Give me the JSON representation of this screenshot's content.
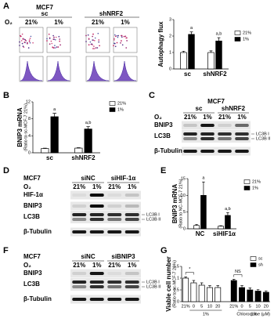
{
  "panel_a": {
    "label": "A",
    "flow": {
      "cell": "MCF7",
      "groups": [
        "sc",
        "shNRF2"
      ],
      "o2": "O₂",
      "lanes": [
        "21%",
        "1%",
        "21%",
        "1%"
      ]
    },
    "chart_data": {
      "type": "bar",
      "ylabel": "Autophagy flux",
      "categories": [
        "sc",
        "shNRF2"
      ],
      "series": [
        {
          "name": "21%",
          "color": "#ffffff",
          "values": [
            1,
            1
          ],
          "errors": [
            0.08,
            0.1
          ]
        },
        {
          "name": "1%",
          "color": "#000000",
          "values": [
            2.1,
            1.7
          ],
          "errors": [
            0.15,
            0.2
          ],
          "annotations": [
            "a",
            "a,b"
          ]
        }
      ],
      "ylim": [
        0,
        3
      ],
      "yticks": [
        0,
        1,
        2,
        3
      ]
    }
  },
  "panel_b": {
    "label": "B",
    "chart_data": {
      "type": "bar",
      "ylabel": "BNIP3 mRNA",
      "ylabel2": "(Ratio to sc-MCF-7 21%)",
      "categories": [
        "sc",
        "shNRF2"
      ],
      "series": [
        {
          "name": "21%",
          "color": "#ffffff",
          "values": [
            1,
            1.1
          ],
          "errors": [
            0.1,
            0.1
          ]
        },
        {
          "name": "1%",
          "color": "#000000",
          "values": [
            8.5,
            5.6
          ],
          "errors": [
            0.8,
            0.6
          ],
          "annotations": [
            "a",
            "a,b"
          ]
        }
      ],
      "ylim": [
        0,
        12
      ],
      "yticks": [
        0,
        4,
        8,
        12
      ]
    }
  },
  "panel_c": {
    "label": "C",
    "blot": {
      "cell": "MCF7",
      "groups": [
        "sc",
        "shNRF2"
      ],
      "o2": "O₂",
      "lanes": [
        "21%",
        "1%",
        "21%",
        "1%"
      ],
      "rows": [
        "BNIP3",
        "LC3B",
        "β-Tubulin"
      ],
      "side_labels": [
        "LC3B I",
        "LC3B II"
      ]
    }
  },
  "panel_d": {
    "label": "D",
    "blot": {
      "cell": "MCF7",
      "groups": [
        "siNC",
        "siHIF-1α"
      ],
      "o2": "O₂",
      "lanes": [
        "21%",
        "1%",
        "21%",
        "1%"
      ],
      "rows": [
        "HIF-1α",
        "BNIP3",
        "LC3B",
        "β-Tubulin"
      ],
      "side_labels": [
        "LC3B I",
        "LC3B II"
      ]
    }
  },
  "panel_e": {
    "label": "E",
    "chart_data": {
      "type": "bar",
      "ylabel": "BNIP3 mRNA",
      "ylabel2": "(Ratio to NC-MCF-7 21%)",
      "categories": [
        "NC",
        "siHIF1α"
      ],
      "series": [
        {
          "name": "21%",
          "color": "#ffffff",
          "values": [
            1,
            0.8
          ],
          "errors": [
            0.3,
            0.1
          ]
        },
        {
          "name": "1%",
          "color": "#000000",
          "values": [
            10,
            4
          ],
          "errors": [
            4,
            0.8
          ],
          "annotations": [
            "a",
            "a,b"
          ]
        }
      ],
      "ylim": [
        0,
        15
      ],
      "yticks": [
        0,
        5,
        10,
        15
      ]
    }
  },
  "panel_f": {
    "label": "F",
    "blot": {
      "cell": "MCF7",
      "groups": [
        "siNC",
        "siBNIP3"
      ],
      "o2": "O₂",
      "lanes": [
        "21%",
        "1%",
        "21%",
        "1%"
      ],
      "rows": [
        "BNIP3",
        "LC3B",
        "β-Tubulin"
      ],
      "side_labels": [
        "LC3B I",
        "LC3B II"
      ]
    }
  },
  "panel_g": {
    "label": "G",
    "chart_data": {
      "type": "bar_sequence",
      "ylabel": "Viable cell number",
      "ylabel2": "(Ratio to sc-MCF-7 21%)",
      "categories": [
        "21%",
        "0",
        "5",
        "10",
        "20"
      ],
      "group_label": "1%",
      "xlabel": "Chloroquine (μM)",
      "series": [
        {
          "name": "sc",
          "color": "#ffffff",
          "values": [
            1,
            0.8,
            0.7,
            0.6,
            0.6
          ],
          "errors": [
            0.05,
            0.1,
            0.1,
            0.08,
            0.08
          ]
        },
        {
          "name": "sh",
          "color": "#000000",
          "values": [
            0.9,
            0.6,
            0.5,
            0.45,
            0.4
          ],
          "errors": [
            0.05,
            0.08,
            0.08,
            0.06,
            0.06
          ]
        }
      ],
      "annotations": [
        "*",
        "NS"
      ],
      "ylim": [
        0,
        1.5
      ],
      "yticks": [
        0,
        0.5,
        1,
        1.5
      ]
    }
  }
}
